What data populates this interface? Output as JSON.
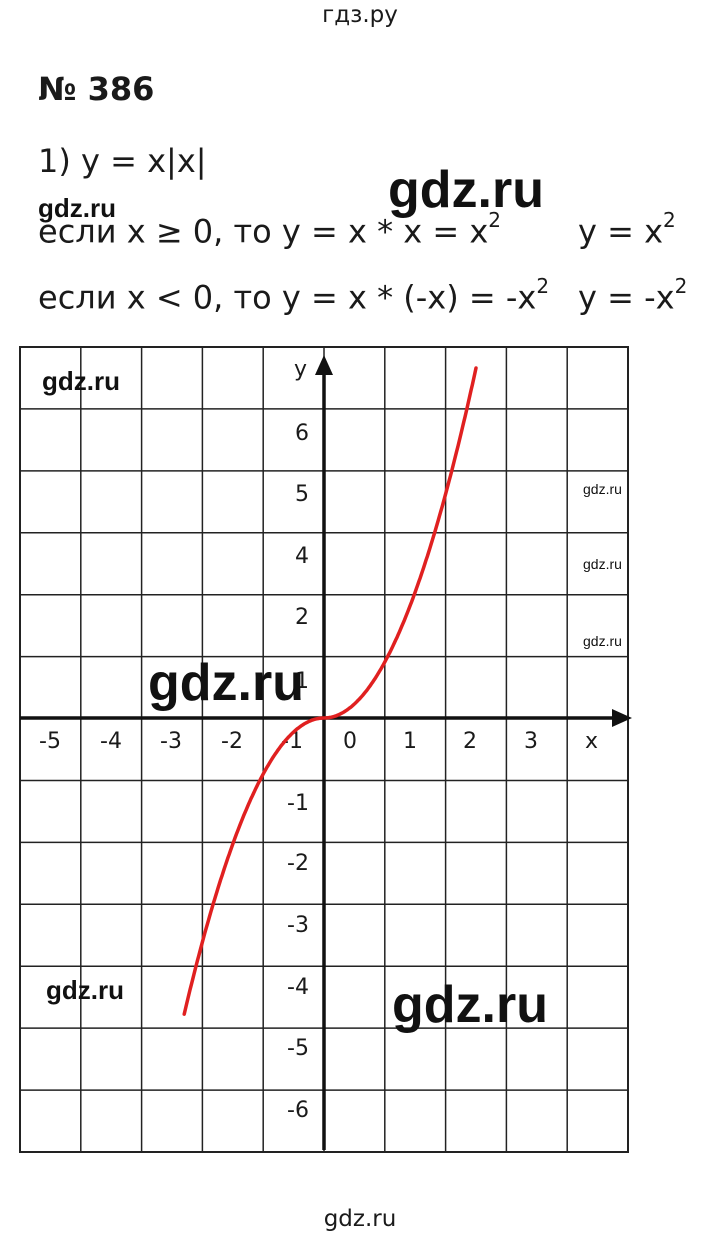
{
  "header": {
    "site": "гдз.ру"
  },
  "task": {
    "number": "№ 386",
    "line1": "1) y = x|x|",
    "case_pos_prefix": "если x ≥ 0, то y = x * x = x",
    "case_pos_exp": "2",
    "case_pos_result": "y = x",
    "case_pos_result_exp": "2",
    "case_neg_prefix": "если x < 0, то y = x * (-x) = -x",
    "case_neg_exp": "2",
    "case_neg_result": "y = -x",
    "case_neg_result_exp": "2"
  },
  "watermarks": {
    "big_1": "gdz.ru",
    "big_2": "gdz.ru",
    "big_3": "gdz.ru",
    "mid_1": "gdz.ru",
    "mid_2": "gdz.ru",
    "mid_3": "gdz.ru",
    "small_1": "gdz.ru",
    "small_2": "gdz.ru",
    "small_3": "gdz.ru"
  },
  "footer": {
    "site": "gdz.ru"
  },
  "chart_data": {
    "type": "line",
    "xlabel": "x",
    "ylabel": "y",
    "x_tick_labels": [
      "-5",
      "-4",
      "-3",
      "-2",
      "-1",
      "0",
      "1",
      "2",
      "3"
    ],
    "y_tick_labels_pos": [
      "1",
      "2",
      "4",
      "5",
      "6"
    ],
    "y_tick_labels_neg": [
      "-1",
      "-2",
      "-3",
      "-4",
      "-5",
      "-6"
    ],
    "series": [
      {
        "name": "",
        "color": "#e02020",
        "x": [
          -2.3,
          -2.0,
          -1.5,
          -1.0,
          -0.5,
          0,
          0.5,
          1.0,
          1.5,
          2.0,
          2.5
        ],
        "y": [
          -5.29,
          -4.0,
          -2.25,
          -1.0,
          -0.25,
          0,
          0.25,
          1.0,
          2.25,
          4.0,
          6.25
        ]
      }
    ],
    "grid": true
  }
}
